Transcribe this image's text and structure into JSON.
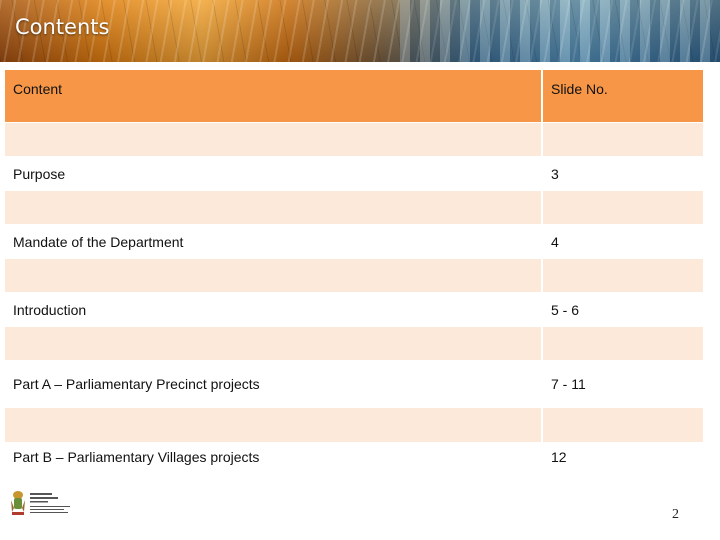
{
  "slide": {
    "title": "Contents",
    "page_number": "2"
  },
  "table": {
    "header": {
      "content": "Content",
      "slide_no": "Slide No."
    },
    "rows": [
      {
        "content": "",
        "slide_no": ""
      },
      {
        "content": "Purpose",
        "slide_no": "3"
      },
      {
        "content": "",
        "slide_no": ""
      },
      {
        "content": "Mandate of the Department",
        "slide_no": "4"
      },
      {
        "content": "",
        "slide_no": ""
      },
      {
        "content": "Introduction",
        "slide_no": "5 - 6"
      },
      {
        "content": "",
        "slide_no": ""
      },
      {
        "content": "Part A – Parliamentary  Precinct projects",
        "slide_no": "7 - 11"
      },
      {
        "content": "",
        "slide_no": ""
      },
      {
        "content": "Part B – Parliamentary Villages projects",
        "slide_no": "12"
      }
    ]
  },
  "colors": {
    "header_fill": "#f79646",
    "shaded_row_fill": "#fde9d9"
  },
  "logo": {
    "icon": "coat-of-arms-icon"
  }
}
